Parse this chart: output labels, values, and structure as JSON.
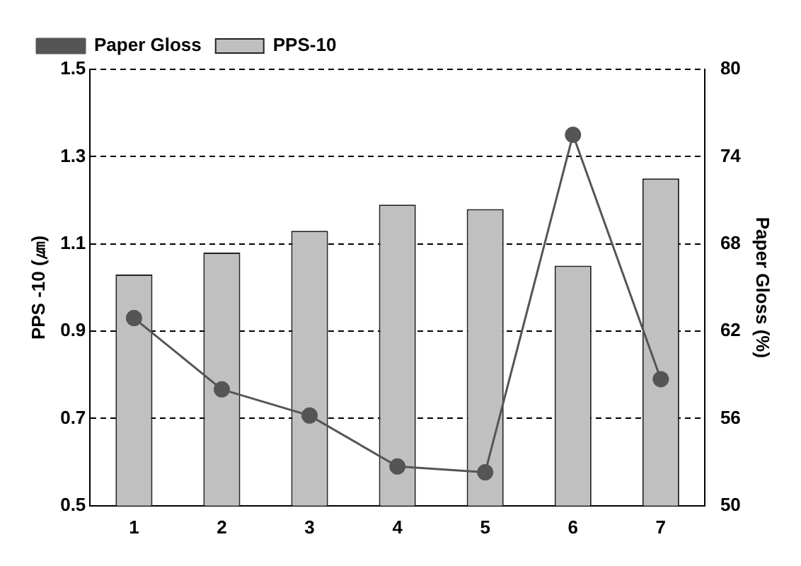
{
  "chart_data": {
    "type": "bar",
    "categories": [
      "1",
      "2",
      "3",
      "4",
      "5",
      "6",
      "7"
    ],
    "ylabel": "PPS -10 (㎛)",
    "y2label": "Paper Gloss (%)",
    "series": [
      {
        "name": "PPS-10",
        "color": "#c0c0c0",
        "values": [
          1.03,
          1.08,
          1.13,
          1.19,
          1.18,
          1.05,
          1.25
        ]
      },
      {
        "name": "Paper Gloss",
        "type": "line",
        "axis": "y2",
        "color": "#555555",
        "marker": "circle",
        "values": [
          62.9,
          58.0,
          56.2,
          52.7,
          52.3,
          75.5,
          58.7
        ]
      }
    ],
    "ylim": [
      0.5,
      1.5
    ],
    "yticks": [
      0.5,
      0.7,
      0.9,
      1.1,
      1.3,
      1.5
    ],
    "y2lim": [
      50,
      80
    ],
    "y2ticks": [
      50,
      56,
      62,
      68,
      74,
      80
    ],
    "grid": "y",
    "legend": "top left"
  }
}
